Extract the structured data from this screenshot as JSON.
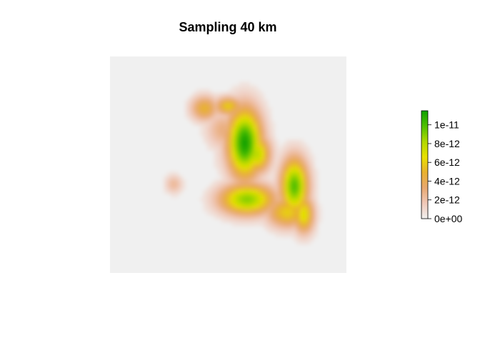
{
  "chart_data": {
    "type": "heatmap",
    "title": "Sampling 40 km",
    "xlabel": "",
    "ylabel": "",
    "legend": {
      "placement": "right",
      "ticks": [
        "0e+00",
        "2e-12",
        "4e-12",
        "6e-12",
        "8e-12",
        "1e-11"
      ],
      "tick_values": [
        0,
        2e-12,
        4e-12,
        6e-12,
        8e-12,
        1e-11
      ],
      "range": [
        0,
        1.15e-11
      ]
    },
    "palette": [
      "#f0f0f0",
      "#f0c8b8",
      "#e8a870",
      "#e8b030",
      "#e8e000",
      "#b0d800",
      "#50c000",
      "#10a000"
    ],
    "background_color": "#f0f0f0",
    "density_blobs": [
      {
        "cx": 0.57,
        "cy": 0.4,
        "rx": 0.05,
        "ry": 0.11,
        "peak": 1.15e-11
      },
      {
        "cx": 0.62,
        "cy": 0.45,
        "rx": 0.04,
        "ry": 0.06,
        "peak": 8e-12
      },
      {
        "cx": 0.58,
        "cy": 0.66,
        "rx": 0.08,
        "ry": 0.05,
        "peak": 9e-12
      },
      {
        "cx": 0.78,
        "cy": 0.6,
        "rx": 0.04,
        "ry": 0.09,
        "peak": 1e-11
      },
      {
        "cx": 0.82,
        "cy": 0.73,
        "rx": 0.03,
        "ry": 0.06,
        "peak": 7e-12
      },
      {
        "cx": 0.5,
        "cy": 0.23,
        "rx": 0.04,
        "ry": 0.03,
        "peak": 6e-12
      },
      {
        "cx": 0.4,
        "cy": 0.24,
        "rx": 0.04,
        "ry": 0.04,
        "peak": 5e-12
      },
      {
        "cx": 0.55,
        "cy": 0.45,
        "rx": 0.06,
        "ry": 0.08,
        "peak": 3e-12
      },
      {
        "cx": 0.48,
        "cy": 0.34,
        "rx": 0.05,
        "ry": 0.06,
        "peak": 3e-12
      },
      {
        "cx": 0.27,
        "cy": 0.59,
        "rx": 0.025,
        "ry": 0.03,
        "peak": 2.5e-12
      },
      {
        "cx": 0.75,
        "cy": 0.72,
        "rx": 0.06,
        "ry": 0.05,
        "peak": 6e-12
      }
    ]
  }
}
